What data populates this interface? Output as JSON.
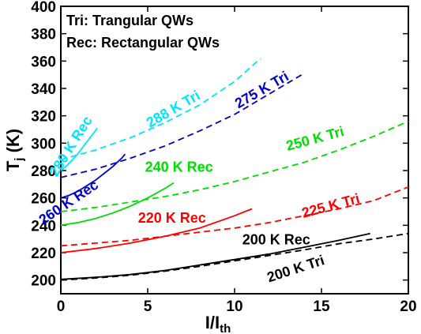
{
  "chart_data": {
    "type": "line",
    "xlabel": "I/I",
    "xlabel_sub": "th",
    "ylabel": "T",
    "ylabel_sub": "j",
    "ylabel_unit": " (K)",
    "xlim": [
      0,
      20
    ],
    "ylim": [
      190,
      400
    ],
    "xticks": [
      0,
      5,
      10,
      15,
      20
    ],
    "yticks": [
      200,
      220,
      240,
      260,
      280,
      300,
      320,
      340,
      360,
      380,
      400
    ],
    "legend_text": [
      "Tri: Trangular QWs",
      "Rec: Rectangular QWs"
    ],
    "series": [
      {
        "name": "200 K Rec",
        "color": "#000000",
        "dash": false,
        "x": [
          0,
          2,
          4,
          6,
          8,
          10,
          12,
          14,
          16,
          17.8
        ],
        "y": [
          200.5,
          202,
          204,
          207,
          211,
          215,
          219,
          224,
          229,
          234
        ]
      },
      {
        "name": "200 K Tri",
        "color": "#000000",
        "dash": true,
        "x": [
          0,
          2,
          4,
          6,
          8,
          10,
          12,
          14,
          16,
          18,
          20
        ],
        "y": [
          200,
          201.5,
          203.5,
          206.5,
          210,
          214,
          218,
          222,
          226.5,
          230,
          234
        ]
      },
      {
        "name": "220 K Rec",
        "color": "#ff0000",
        "dash": false,
        "x": [
          0,
          2,
          4,
          6,
          8,
          10,
          11
        ],
        "y": [
          220,
          223,
          227,
          232,
          238,
          247,
          252
        ]
      },
      {
        "name": "225 K Tri",
        "color": "#ff0000",
        "dash": true,
        "x": [
          0,
          2,
          4,
          6,
          8,
          10,
          12,
          14,
          16,
          18,
          20
        ],
        "y": [
          225,
          227,
          229,
          232,
          235,
          238,
          242,
          247,
          252,
          258,
          268
        ]
      },
      {
        "name": "240 K Rec",
        "color": "#00dd00",
        "dash": false,
        "x": [
          0,
          1,
          2,
          3,
          4,
          5,
          6,
          6.5
        ],
        "y": [
          240,
          242,
          245,
          249,
          254,
          260,
          267,
          271
        ]
      },
      {
        "name": "250 K Tri",
        "color": "#00dd00",
        "dash": true,
        "x": [
          0,
          2,
          4,
          6,
          8,
          10,
          12,
          14,
          16,
          18,
          20
        ],
        "y": [
          250,
          253,
          257,
          261,
          266,
          272,
          279,
          286,
          295,
          305,
          316
        ]
      },
      {
        "name": "260 K Rec",
        "color": "#0000cc",
        "dash": false,
        "x": [
          0,
          0.5,
          1,
          1.5,
          2,
          2.5,
          3,
          3.5,
          3.7
        ],
        "y": [
          260,
          262,
          265,
          269,
          273,
          278,
          283,
          289,
          292
        ]
      },
      {
        "name": "275 K Tri",
        "color": "#0000cc",
        "dash": true,
        "x": [
          0,
          2,
          4,
          6,
          8,
          10,
          12,
          14
        ],
        "y": [
          275,
          281,
          289,
          298,
          309,
          321,
          336,
          351
        ]
      },
      {
        "name": "280 K Rec",
        "color": "#00e5ff",
        "dash": false,
        "x": [
          0,
          0.3,
          0.6,
          0.9,
          1.2,
          1.5,
          1.8,
          2.1
        ],
        "y": [
          280,
          283,
          287,
          291,
          296,
          301,
          306,
          311
        ]
      },
      {
        "name": "288 K Tri",
        "color": "#00e5ff",
        "dash": true,
        "x": [
          0,
          2,
          4,
          6,
          8,
          10,
          11.5
        ],
        "y": [
          288,
          295,
          304,
          315,
          328,
          345,
          362
        ]
      }
    ],
    "curve_labels": [
      {
        "text": "280 K Rec",
        "color": "#00e5ff",
        "x": 0.8,
        "y": 296,
        "angle": -58
      },
      {
        "text": "288 K Tri",
        "color": "#00e5ff",
        "x": 6.6,
        "y": 322,
        "angle": -30
      },
      {
        "text": "275 K Tri",
        "color": "#0000cc",
        "x": 11.7,
        "y": 336,
        "angle": -30
      },
      {
        "text": "260 K Rec",
        "color": "#0000cc",
        "x": 0.6,
        "y": 254,
        "angle": -34
      },
      {
        "text": "240 K Rec",
        "color": "#00dd00",
        "x": 6.8,
        "y": 279,
        "angle": 0
      },
      {
        "text": "250 K Tri",
        "color": "#00dd00",
        "x": 14.7,
        "y": 300,
        "angle": -15
      },
      {
        "text": "220 K Rec",
        "color": "#ff0000",
        "x": 6.4,
        "y": 242,
        "angle": 0
      },
      {
        "text": "225 K Tri",
        "color": "#ff0000",
        "x": 15.6,
        "y": 251,
        "angle": -15
      },
      {
        "text": "200 K Rec",
        "color": "#000000",
        "x": 12.4,
        "y": 226,
        "angle": 0
      },
      {
        "text": "200 K Tri",
        "color": "#000000",
        "x": 13.6,
        "y": 205,
        "angle": -18
      }
    ]
  }
}
